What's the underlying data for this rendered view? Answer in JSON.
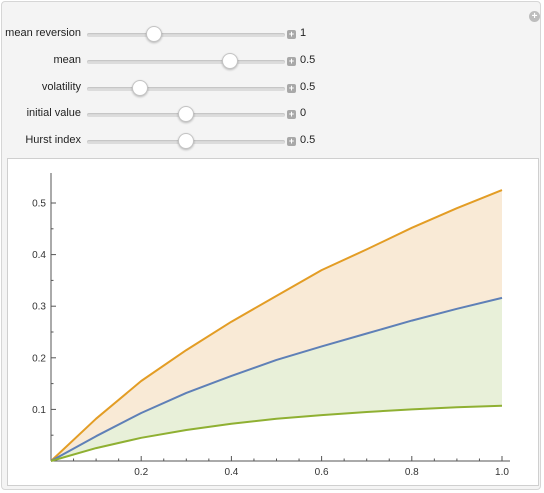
{
  "controls": [
    {
      "label": "mean reversion",
      "value_text": "1",
      "fraction": 0.34
    },
    {
      "label": "mean",
      "value_text": "0.5",
      "fraction": 0.72
    },
    {
      "label": "volatility",
      "value_text": "0.5",
      "fraction": 0.27
    },
    {
      "label": "initial value",
      "value_text": "0",
      "fraction": 0.5
    },
    {
      "label": "Hurst index",
      "value_text": "0.5",
      "fraction": 0.5
    }
  ],
  "icons": {
    "panel_toggle": "plus-circle-icon",
    "stepper": "plus-square-icon"
  },
  "chart_data": {
    "type": "area",
    "x_ticks": [
      "0.2",
      "0.4",
      "0.6",
      "0.8",
      "1.0"
    ],
    "y_ticks": [
      "0.1",
      "0.2",
      "0.3",
      "0.4",
      "0.5"
    ],
    "xlim": [
      0,
      1.0
    ],
    "ylim": [
      0,
      0.55
    ],
    "grid": false,
    "series": [
      {
        "color": "#e39d25",
        "x": [
          0,
          0.1,
          0.2,
          0.3,
          0.4,
          0.5,
          0.6,
          0.7,
          0.8,
          0.9,
          1.0
        ],
        "values": [
          0,
          0.082,
          0.155,
          0.215,
          0.27,
          0.32,
          0.37,
          0.41,
          0.452,
          0.49,
          0.525
        ]
      },
      {
        "color": "#5f80b7",
        "x": [
          0,
          0.1,
          0.2,
          0.3,
          0.4,
          0.5,
          0.6,
          0.7,
          0.8,
          0.9,
          1.0
        ],
        "values": [
          0,
          0.048,
          0.093,
          0.132,
          0.165,
          0.196,
          0.222,
          0.247,
          0.272,
          0.295,
          0.316
        ]
      },
      {
        "color": "#8fb032",
        "x": [
          0,
          0.1,
          0.2,
          0.3,
          0.4,
          0.5,
          0.6,
          0.7,
          0.8,
          0.9,
          1.0
        ],
        "values": [
          0,
          0.025,
          0.045,
          0.06,
          0.072,
          0.082,
          0.089,
          0.095,
          0.1,
          0.104,
          0.107
        ]
      }
    ],
    "fills": [
      {
        "between": [
          0,
          1
        ],
        "color": "#f9ead6"
      },
      {
        "between": [
          1,
          2
        ],
        "color": "#e8f0d9"
      }
    ]
  }
}
